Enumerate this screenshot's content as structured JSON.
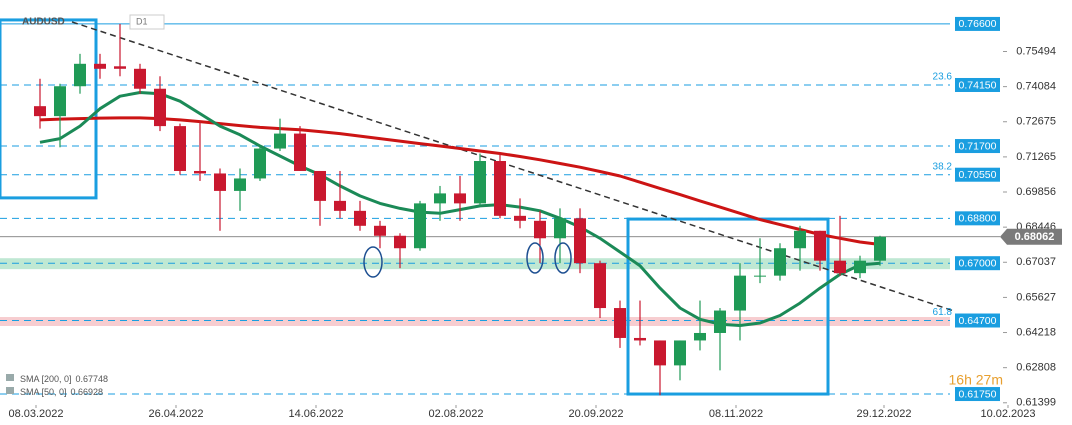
{
  "chart_data": {
    "type": "candlestick",
    "title": "AUDUSD",
    "timeframe": "D1",
    "x": [
      "2022-03-07",
      "2022-03-14",
      "2022-03-21",
      "2022-03-28",
      "2022-04-04",
      "2022-04-11",
      "2022-04-18",
      "2022-04-25",
      "2022-05-02",
      "2022-05-09",
      "2022-05-16",
      "2022-05-23",
      "2022-05-30",
      "2022-06-06",
      "2022-06-13",
      "2022-06-20",
      "2022-06-27",
      "2022-07-04",
      "2022-07-11",
      "2022-07-18",
      "2022-07-25",
      "2022-08-01",
      "2022-08-08",
      "2022-08-15",
      "2022-08-22",
      "2022-08-29",
      "2022-09-05",
      "2022-09-12",
      "2022-09-19",
      "2022-09-26",
      "2022-10-03",
      "2022-10-10",
      "2022-10-17",
      "2022-10-24",
      "2022-10-31",
      "2022-11-07",
      "2022-11-14",
      "2022-11-21",
      "2022-11-28",
      "2022-12-05",
      "2022-12-12",
      "2022-12-19",
      "2022-12-26"
    ],
    "open": [
      0.733,
      0.729,
      0.741,
      0.75,
      0.749,
      0.748,
      0.74,
      0.725,
      0.707,
      0.706,
      0.699,
      0.704,
      0.716,
      0.722,
      0.707,
      0.695,
      0.691,
      0.685,
      0.681,
      0.676,
      0.694,
      0.698,
      0.694,
      0.711,
      0.689,
      0.687,
      0.68,
      0.688,
      0.67,
      0.652,
      0.64,
      0.639,
      0.629,
      0.639,
      0.642,
      0.651,
      0.665,
      0.665,
      0.676,
      0.683,
      0.671,
      0.666,
      0.671
    ],
    "high": [
      0.744,
      0.742,
      0.754,
      0.754,
      0.766,
      0.75,
      0.745,
      0.726,
      0.727,
      0.708,
      0.708,
      0.717,
      0.728,
      0.725,
      0.707,
      0.707,
      0.695,
      0.687,
      0.682,
      0.695,
      0.701,
      0.705,
      0.714,
      0.714,
      0.696,
      0.691,
      0.692,
      0.692,
      0.671,
      0.655,
      0.655,
      0.639,
      0.639,
      0.655,
      0.652,
      0.67,
      0.68,
      0.678,
      0.685,
      0.683,
      0.689,
      0.673,
      0.681
    ],
    "low": [
      0.724,
      0.7165,
      0.738,
      0.744,
      0.745,
      0.738,
      0.723,
      0.7055,
      0.703,
      0.683,
      0.691,
      0.703,
      0.715,
      0.707,
      0.685,
      0.688,
      0.683,
      0.676,
      0.668,
      0.675,
      0.687,
      0.687,
      0.693,
      0.688,
      0.684,
      0.67,
      0.67,
      0.666,
      0.648,
      0.636,
      0.637,
      0.617,
      0.623,
      0.635,
      0.627,
      0.639,
      0.662,
      0.663,
      0.667,
      0.667,
      0.665,
      0.664,
      0.669
    ],
    "close": [
      0.729,
      0.741,
      0.75,
      0.748,
      0.748,
      0.74,
      0.725,
      0.707,
      0.706,
      0.699,
      0.704,
      0.716,
      0.722,
      0.707,
      0.695,
      0.691,
      0.685,
      0.681,
      0.676,
      0.694,
      0.698,
      0.694,
      0.711,
      0.689,
      0.687,
      0.68,
      0.688,
      0.67,
      0.652,
      0.64,
      0.639,
      0.629,
      0.639,
      0.642,
      0.651,
      0.665,
      0.665,
      0.676,
      0.683,
      0.671,
      0.666,
      0.671,
      0.6806
    ],
    "up_color": "#1f9a56",
    "down_color": "#c9182f",
    "series": [
      {
        "name": "SMA [200, 0]",
        "last": 0.67748,
        "color": "#cc1414",
        "values": [
          0.7275,
          0.7278,
          0.728,
          0.7282,
          0.7283,
          0.7283,
          0.728,
          0.7275,
          0.7268,
          0.726,
          0.7252,
          0.7245,
          0.724,
          0.7235,
          0.7228,
          0.722,
          0.721,
          0.72,
          0.719,
          0.718,
          0.717,
          0.716,
          0.715,
          0.714,
          0.7128,
          0.7115,
          0.71,
          0.7085,
          0.7068,
          0.705,
          0.7025,
          0.7,
          0.6975,
          0.695,
          0.6925,
          0.69,
          0.6875,
          0.6855,
          0.6835,
          0.6815,
          0.68,
          0.6785,
          0.6775
        ]
      },
      {
        "name": "SMA [50, 0]",
        "last": 0.66928,
        "color": "#1b8a57",
        "values": [
          0.7185,
          0.72,
          0.725,
          0.732,
          0.737,
          0.7385,
          0.738,
          0.735,
          0.73,
          0.725,
          0.7215,
          0.717,
          0.713,
          0.709,
          0.7055,
          0.701,
          0.697,
          0.694,
          0.692,
          0.6905,
          0.69,
          0.6915,
          0.693,
          0.6935,
          0.6925,
          0.691,
          0.688,
          0.6845,
          0.68,
          0.6745,
          0.669,
          0.66,
          0.652,
          0.6475,
          0.6455,
          0.645,
          0.646,
          0.649,
          0.654,
          0.66,
          0.6655,
          0.6693,
          0.67
        ]
      }
    ],
    "xlim": [
      "2022-02-23",
      "2023-03-06"
    ],
    "xticks": [
      {
        "value": "2022-03-08",
        "label": "08.03.2022"
      },
      {
        "value": "2022-04-26",
        "label": "26.04.2022"
      },
      {
        "value": "2022-06-14",
        "label": "14.06.2022"
      },
      {
        "value": "2022-08-02",
        "label": "02.08.2022"
      },
      {
        "value": "2022-09-20",
        "label": "20.09.2022"
      },
      {
        "value": "2022-11-08",
        "label": "08.11.2022"
      },
      {
        "value": "2022-12-29",
        "label": "29.12.2022"
      },
      {
        "value": "2023-02-10",
        "label": "10.02.2023"
      }
    ],
    "ylim": [
      0.6131,
      0.7756
    ],
    "yticks": [
      0.75494,
      0.74084,
      0.72675,
      0.71265,
      0.69856,
      0.68446,
      0.67037,
      0.65627,
      0.64218,
      0.62808,
      0.61399
    ],
    "level_color": "#1a9ee0",
    "levels": [
      {
        "value": 0.766,
        "label": "0.76600",
        "line": "solid"
      },
      {
        "value": 0.7415,
        "label": "0.74150",
        "line": "dashed",
        "fib": "23.6"
      },
      {
        "value": 0.717,
        "label": "0.71700",
        "line": "dashed"
      },
      {
        "value": 0.7055,
        "label": "0.70550",
        "line": "dashed",
        "fib": "38.2"
      },
      {
        "value": 0.688,
        "label": "0.68800",
        "line": "dashed"
      },
      {
        "value": 0.67,
        "label": "0.67000",
        "line": "dashed"
      },
      {
        "value": 0.647,
        "label": "0.64700",
        "line": "dashed",
        "fib": "61.8"
      },
      {
        "value": 0.6175,
        "label": "0.61750",
        "line": "dashed"
      }
    ],
    "zones": [
      {
        "low": 0.6676,
        "high": 0.672,
        "color": "#bfe8d3"
      },
      {
        "low": 0.6448,
        "high": 0.6484,
        "color": "#f7cdd0"
      }
    ],
    "boxes": [
      {
        "x": [
          "2022-02-23",
          "2022-03-29"
        ],
        "y": [
          0.6962,
          0.7676
        ]
      },
      {
        "x": [
          "2022-09-30",
          "2022-12-09"
        ],
        "y": [
          0.6175,
          0.6877
        ]
      }
    ],
    "trendline": {
      "x": [
        "2022-03-21",
        "2023-01-23"
      ],
      "values": [
        0.7668,
        0.6511
      ]
    },
    "current_price": 0.68062,
    "countdown": "16h 27m"
  }
}
